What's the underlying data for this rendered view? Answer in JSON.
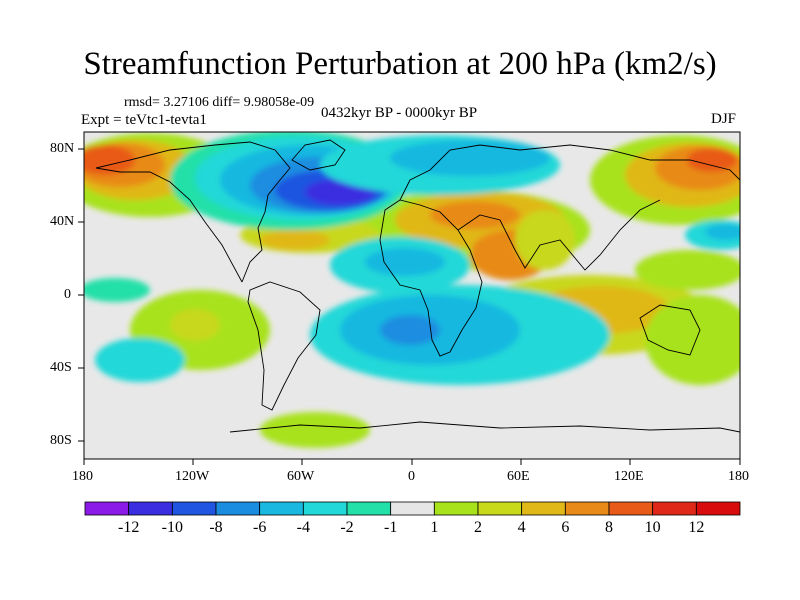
{
  "title": "Streamfunction Perturbation at 200 hPa (km2/s)",
  "stats": "rmsd= 3.27106 diff= 9.98058e-09",
  "experiment": "Expt = teVtc1-tevta1",
  "period": "0432kyr BP - 0000kyr BP",
  "season": "DJF",
  "lat_labels": [
    "80N",
    "40N",
    "0",
    "40S",
    "80S"
  ],
  "lon_labels": [
    "180",
    "120W",
    "60W",
    "0",
    "60E",
    "120E",
    "180"
  ],
  "colorbar": {
    "labels": [
      "-12",
      "-10",
      "-8",
      "-6",
      "-4",
      "-2",
      "-1",
      "1",
      "2",
      "4",
      "6",
      "8",
      "10",
      "12"
    ],
    "colors": [
      "#8b1ae8",
      "#3a2ee0",
      "#1f55e0",
      "#1a8de0",
      "#18b8e0",
      "#22d8d8",
      "#22e0a8",
      "#e6e6e6",
      "#a8e21a",
      "#c8d81a",
      "#e0b818",
      "#e88a18",
      "#e85a18",
      "#e02818",
      "#d80c0c"
    ]
  },
  "map_fields": {
    "background": "#e8e8e8",
    "positive_colors": [
      "#a8e21a",
      "#c8d81a",
      "#e0b818",
      "#e88a18",
      "#e85a18"
    ],
    "negative_colors": [
      "#22e0a8",
      "#22d8d8",
      "#18b8e0",
      "#1a8de0",
      "#1f55e0",
      "#3a2ee0"
    ]
  }
}
